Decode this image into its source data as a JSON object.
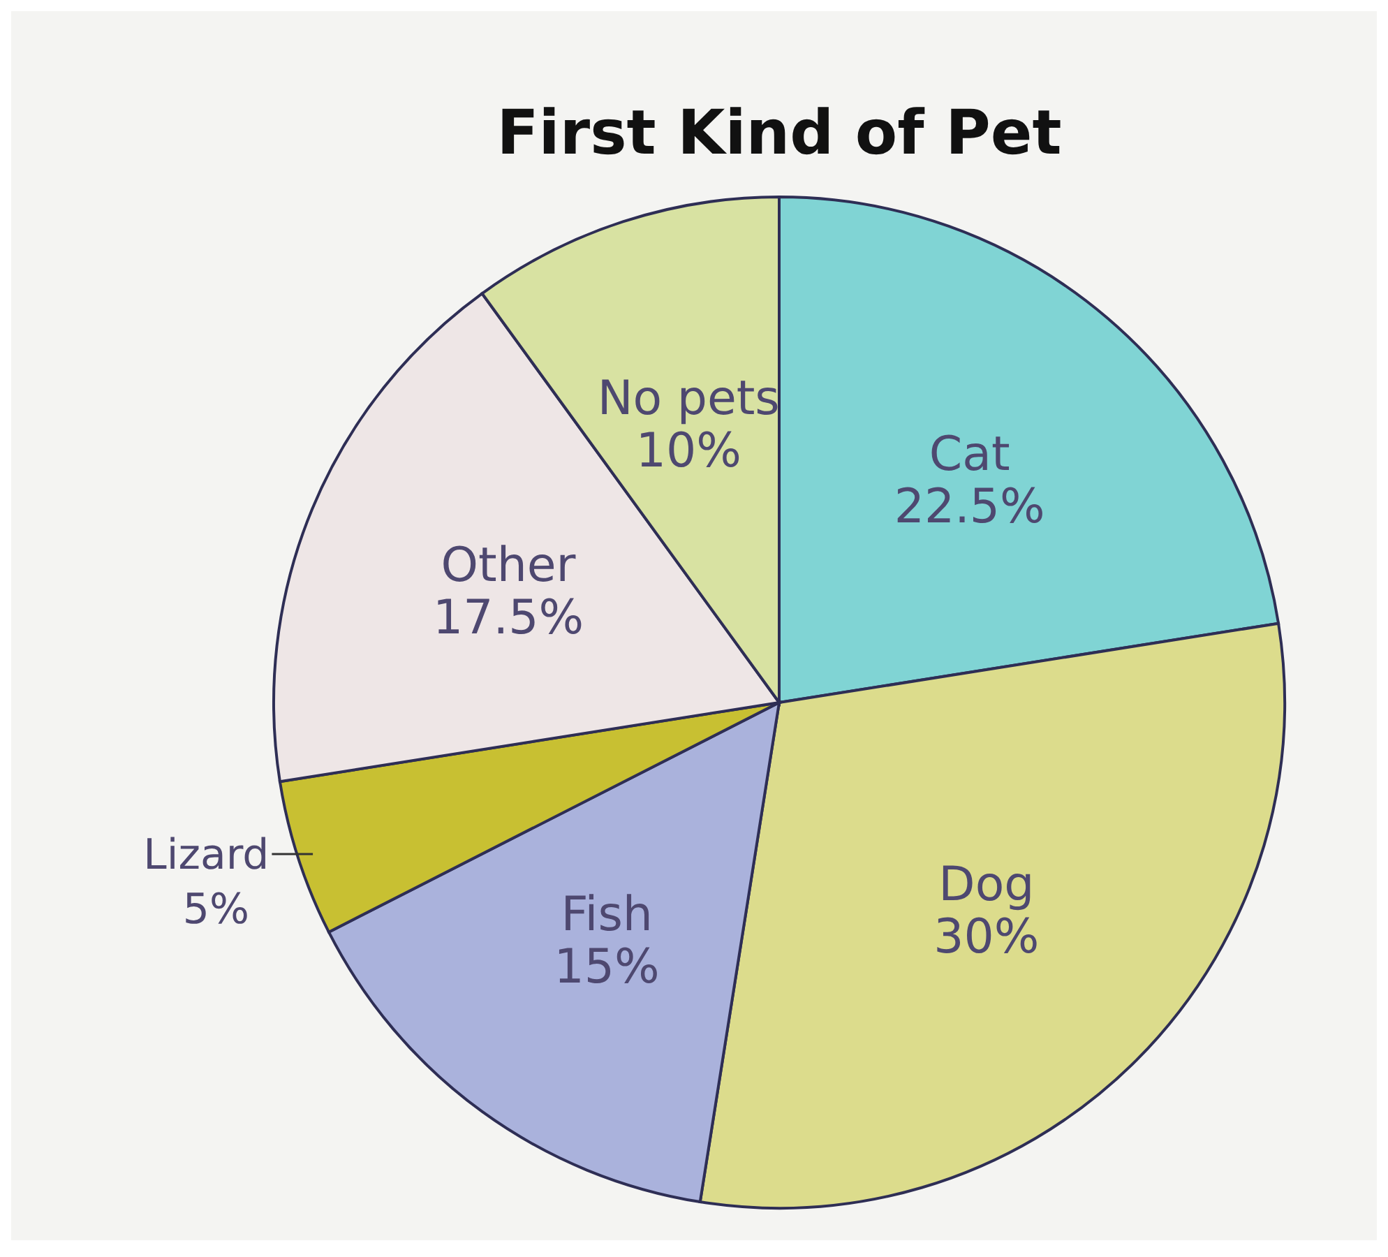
{
  "chart_data": {
    "type": "pie",
    "title": "First Kind of Pet",
    "categories": [
      "Cat",
      "Dog",
      "Fish",
      "Lizard",
      "Other",
      "No pets"
    ],
    "values": [
      22.5,
      30,
      15,
      5,
      17.5,
      10
    ],
    "value_labels": [
      "22.5%",
      "30%",
      "15%",
      "5%",
      "17.5%",
      "10%"
    ],
    "colors": [
      "#80d4d4",
      "#dcdc8c",
      "#aab2dc",
      "#c8c032",
      "#eee6e6",
      "#d8e2a2"
    ],
    "legend": false
  }
}
